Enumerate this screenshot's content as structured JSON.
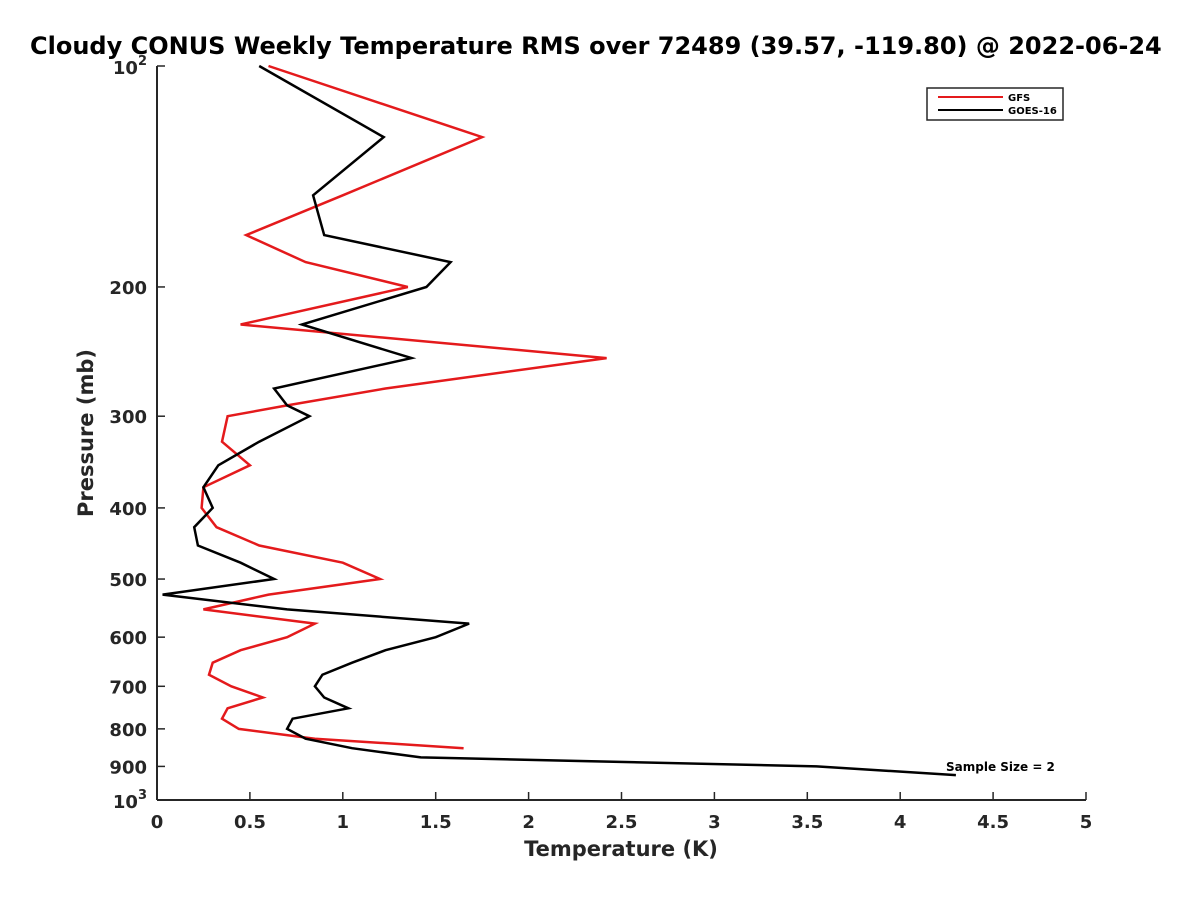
{
  "chart_data": {
    "type": "line",
    "title": "Cloudy CONUS Weekly Temperature RMS over 72489 (39.57, -119.80) @ 2022-06-24",
    "xlabel": "Temperature (K)",
    "ylabel": "Pressure (mb)",
    "xlim": [
      0,
      5
    ],
    "ylim": [
      100,
      1000
    ],
    "y_scale": "log",
    "y_reversed": true,
    "x_ticks": [
      "0",
      "0.5",
      "1",
      "1.5",
      "2",
      "2.5",
      "3",
      "3.5",
      "4",
      "4.5",
      "5"
    ],
    "y_ticks": [
      {
        "value": 100,
        "base": "10",
        "exp": "2"
      },
      {
        "value": 200,
        "label": "200"
      },
      {
        "value": 300,
        "label": "300"
      },
      {
        "value": 400,
        "label": "400"
      },
      {
        "value": 500,
        "label": "500"
      },
      {
        "value": 600,
        "label": "600"
      },
      {
        "value": 700,
        "label": "700"
      },
      {
        "value": 800,
        "label": "800"
      },
      {
        "value": 900,
        "label": "900"
      },
      {
        "value": 1000,
        "base": "10",
        "exp": "3"
      }
    ],
    "grid": false,
    "legend_position": "top-right",
    "annotation": "Sample Size = 2",
    "series": [
      {
        "name": "GFS",
        "color": "#e41a1c",
        "points": [
          [
            0.6,
            100
          ],
          [
            1.75,
            125
          ],
          [
            1.0,
            150
          ],
          [
            0.48,
            170
          ],
          [
            0.8,
            185
          ],
          [
            1.35,
            200
          ],
          [
            0.45,
            225
          ],
          [
            2.42,
            250
          ],
          [
            1.23,
            275
          ],
          [
            0.7,
            290
          ],
          [
            0.38,
            300
          ],
          [
            0.35,
            325
          ],
          [
            0.5,
            350
          ],
          [
            0.25,
            375
          ],
          [
            0.24,
            400
          ],
          [
            0.32,
            425
          ],
          [
            0.55,
            450
          ],
          [
            1.0,
            475
          ],
          [
            1.2,
            500
          ],
          [
            0.6,
            525
          ],
          [
            0.25,
            550
          ],
          [
            0.85,
            575
          ],
          [
            0.7,
            600
          ],
          [
            0.45,
            625
          ],
          [
            0.3,
            650
          ],
          [
            0.28,
            675
          ],
          [
            0.4,
            700
          ],
          [
            0.57,
            725
          ],
          [
            0.38,
            750
          ],
          [
            0.35,
            775
          ],
          [
            0.44,
            800
          ],
          [
            0.85,
            825
          ],
          [
            1.65,
            850
          ]
        ]
      },
      {
        "name": "GOES-16",
        "color": "#000000",
        "points": [
          [
            0.55,
            100
          ],
          [
            1.22,
            125
          ],
          [
            0.84,
            150
          ],
          [
            0.9,
            170
          ],
          [
            1.58,
            185
          ],
          [
            1.45,
            200
          ],
          [
            0.78,
            225
          ],
          [
            1.37,
            250
          ],
          [
            0.63,
            275
          ],
          [
            0.7,
            290
          ],
          [
            0.82,
            300
          ],
          [
            0.55,
            325
          ],
          [
            0.33,
            350
          ],
          [
            0.25,
            375
          ],
          [
            0.3,
            400
          ],
          [
            0.2,
            425
          ],
          [
            0.22,
            450
          ],
          [
            0.45,
            475
          ],
          [
            0.63,
            500
          ],
          [
            0.03,
            525
          ],
          [
            0.7,
            550
          ],
          [
            1.68,
            575
          ],
          [
            1.5,
            600
          ],
          [
            1.23,
            625
          ],
          [
            1.05,
            650
          ],
          [
            0.89,
            675
          ],
          [
            0.85,
            700
          ],
          [
            0.9,
            725
          ],
          [
            1.03,
            750
          ],
          [
            0.73,
            775
          ],
          [
            0.7,
            800
          ],
          [
            0.8,
            825
          ],
          [
            1.05,
            850
          ],
          [
            1.42,
            875
          ],
          [
            3.55,
            900
          ],
          [
            4.3,
            925
          ]
        ]
      }
    ]
  }
}
